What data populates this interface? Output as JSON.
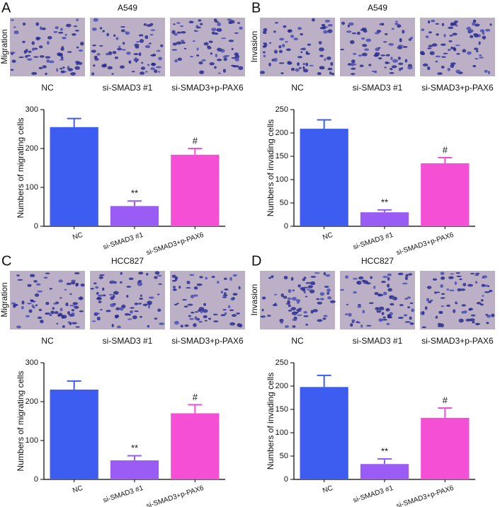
{
  "chart_data": [
    {
      "type": "bar",
      "panel": "A",
      "title": "A549",
      "row_label": "Migration",
      "image_labels": [
        "NC",
        "si-SMAD3 #1",
        "si-SMAD3+p-PAX6"
      ],
      "ylabel": "Numbers of migrating cells",
      "categories": [
        "NC",
        "si-SMAD3 #1",
        "si-SMAD3+p-PAX6"
      ],
      "values": [
        255,
        52,
        184
      ],
      "errors": [
        22,
        13,
        16
      ],
      "annotations": [
        null,
        "**",
        "#"
      ],
      "colors": [
        "#3d5cf0",
        "#9b5cf5",
        "#f54fd6"
      ],
      "ylim": [
        0,
        300
      ],
      "yticks": [
        0,
        100,
        200,
        300
      ]
    },
    {
      "type": "bar",
      "panel": "B",
      "title": "A549",
      "row_label": "Invasion",
      "image_labels": [
        "NC",
        "si-SMAD3 #1",
        "si-SMAD3+p-PAX6"
      ],
      "ylabel": "Numbers of invading cells",
      "categories": [
        "NC",
        "si-SMAD3 #1",
        "si-SMAD3+p-PAX6"
      ],
      "values": [
        209,
        30,
        135
      ],
      "errors": [
        19,
        5,
        12
      ],
      "annotations": [
        null,
        "**",
        "#"
      ],
      "colors": [
        "#3d5cf0",
        "#9b5cf5",
        "#f54fd6"
      ],
      "ylim": [
        0,
        250
      ],
      "yticks": [
        0,
        50,
        100,
        150,
        200,
        250
      ]
    },
    {
      "type": "bar",
      "panel": "C",
      "title": "HCC827",
      "row_label": "Migration",
      "image_labels": [
        "NC",
        "si-SMAD3 #1",
        "si-SMAD3+p-PAX6"
      ],
      "ylabel": "Numbers of migrating cells",
      "categories": [
        "NC",
        "si-SMAD3 #1",
        "si-SMAD3+p-PAX6"
      ],
      "values": [
        231,
        49,
        170
      ],
      "errors": [
        22,
        12,
        22
      ],
      "annotations": [
        null,
        "**",
        "#"
      ],
      "colors": [
        "#3d5cf0",
        "#9b5cf5",
        "#f54fd6"
      ],
      "ylim": [
        0,
        300
      ],
      "yticks": [
        0,
        100,
        200,
        300
      ]
    },
    {
      "type": "bar",
      "panel": "D",
      "title": "HCC827",
      "row_label": "Invasion",
      "image_labels": [
        "NC",
        "si-SMAD3 #1",
        "si-SMAD3+p-PAX6"
      ],
      "ylabel": "Numbers of invading cells",
      "categories": [
        "NC",
        "si-SMAD3 #1",
        "si-SMAD3+p-PAX6"
      ],
      "values": [
        198,
        33,
        132
      ],
      "errors": [
        25,
        11,
        21
      ],
      "annotations": [
        null,
        "**",
        "#"
      ],
      "colors": [
        "#3d5cf0",
        "#9b5cf5",
        "#f54fd6"
      ],
      "ylim": [
        0,
        250
      ],
      "yticks": [
        0,
        50,
        100,
        150,
        200,
        250
      ]
    }
  ]
}
